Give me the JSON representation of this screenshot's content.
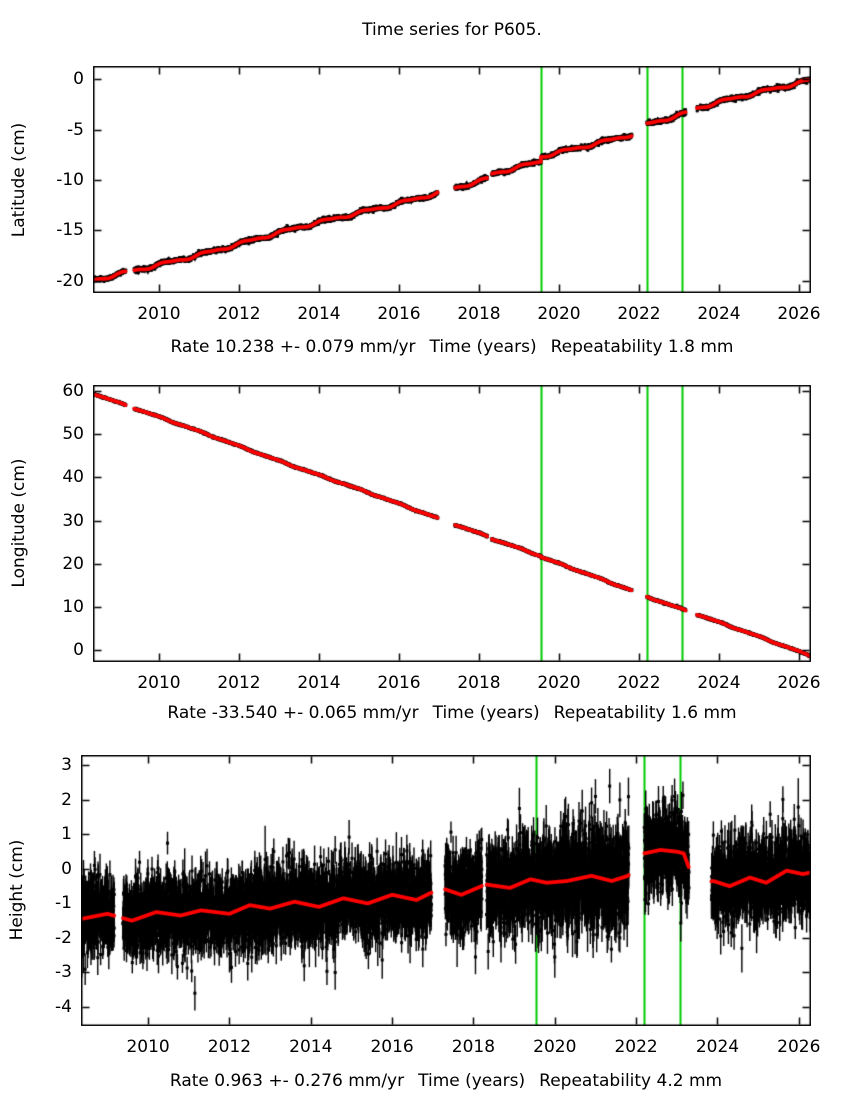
{
  "title": "Time series for P605.",
  "colors": {
    "background": "#ffffff",
    "data_points": "#000000",
    "model_line": "#ff0000",
    "event_line": "#00cc00",
    "frame": "#000000"
  },
  "chart_data": [
    {
      "type": "scatter",
      "panel": "latitude",
      "ylabel": "Latitude (cm)",
      "footer": {
        "rate": "Rate 10.238 +- 0.079 mm/yr",
        "xlabel": "Time (years)",
        "repeatability": "Repeatability 1.8 mm"
      },
      "rate_value_mm_yr": 10.238,
      "rate_sigma_mm_yr": 0.079,
      "repeatability_mm": 1.8,
      "xlim": [
        2008.35,
        2026.3
      ],
      "ylim": [
        -21.2,
        1.3
      ],
      "xticks": [
        2010,
        2012,
        2014,
        2016,
        2018,
        2020,
        2022,
        2024,
        2026
      ],
      "yticks": [
        0,
        -5,
        -10,
        -15,
        -20
      ],
      "event_lines": [
        2019.55,
        2022.2,
        2023.07
      ],
      "gaps": [
        [
          2009.17,
          2009.38
        ],
        [
          2016.97,
          2017.4
        ],
        [
          2018.21,
          2018.32
        ],
        [
          2021.82,
          2022.2
        ],
        [
          2023.17,
          2023.45
        ]
      ],
      "trend": {
        "start_value": -20.05,
        "rate_cm_yr": 1.0238,
        "steps": [
          [
            2018.32,
            0.35
          ],
          [
            2019.55,
            0.5
          ],
          [
            2022.2,
            0.6
          ],
          [
            2023.45,
            0.2
          ]
        ]
      },
      "signal": {
        "annual": [
          0.13,
          0.4
        ],
        "semi": [
          0.05,
          1.2
        ],
        "slow": [
          0.09,
          5.3,
          2.1
        ]
      },
      "noise_sd": 0.095,
      "bar_frac": [
        1.0,
        0.8
      ],
      "outliers": [
        [
          2010.05,
          -18.35,
          0.2
        ],
        [
          2013.4,
          -15.05,
          0.2
        ]
      ],
      "seed": 1001
    },
    {
      "type": "scatter",
      "panel": "longitude",
      "ylabel": "Longitude (cm)",
      "footer": {
        "rate": "Rate -33.540 +- 0.065 mm/yr",
        "xlabel": "Time (years)",
        "repeatability": "Repeatability 1.6 mm"
      },
      "rate_value_mm_yr": -33.54,
      "rate_sigma_mm_yr": 0.065,
      "repeatability_mm": 1.6,
      "xlim": [
        2008.35,
        2026.3
      ],
      "ylim": [
        -2.75,
        61.4
      ],
      "xticks": [
        2010,
        2012,
        2014,
        2016,
        2018,
        2020,
        2022,
        2024,
        2026
      ],
      "yticks": [
        60,
        50,
        40,
        30,
        20,
        10,
        0
      ],
      "event_lines": [
        2019.55,
        2022.2,
        2023.07
      ],
      "gaps": [
        [
          2009.17,
          2009.38
        ],
        [
          2016.97,
          2017.4
        ],
        [
          2018.21,
          2018.32
        ],
        [
          2021.82,
          2022.2
        ],
        [
          2023.17,
          2023.45
        ]
      ],
      "trend": {
        "start_value": 59.5,
        "rate_cm_yr": -3.354,
        "steps": [
          [
            2018.32,
            -0.2
          ],
          [
            2019.55,
            -0.25
          ],
          [
            2022.2,
            -0.15
          ]
        ]
      },
      "signal": {
        "annual": [
          0.1,
          2.0
        ],
        "semi": [
          0.04,
          0.5
        ],
        "slow": [
          0.07,
          4.6,
          0.8
        ]
      },
      "noise_sd": 0.085,
      "bar_frac": [
        1.0,
        0.8
      ],
      "outliers": [
        [
          2022.95,
          10.4,
          0.2
        ]
      ],
      "seed": 2002
    },
    {
      "type": "scatter",
      "panel": "height",
      "ylabel": "Height (cm)",
      "footer": {
        "rate": "Rate 0.963 +- 0.276 mm/yr",
        "xlabel": "Time (years)",
        "repeatability": "Repeatability 4.2 mm"
      },
      "rate_value_mm_yr": 0.963,
      "rate_sigma_mm_yr": 0.276,
      "repeatability_mm": 4.2,
      "xlim": [
        2008.35,
        2026.3
      ],
      "ylim": [
        -4.55,
        3.3
      ],
      "xticks": [
        2010,
        2012,
        2014,
        2016,
        2018,
        2020,
        2022,
        2024,
        2026
      ],
      "yticks": [
        3,
        2,
        1,
        0,
        -1,
        -2,
        -3,
        -4
      ],
      "event_lines": [
        2019.55,
        2022.2,
        2023.07
      ],
      "gaps": [
        [
          2009.17,
          2009.38
        ],
        [
          2016.97,
          2017.3
        ],
        [
          2018.21,
          2018.32
        ],
        [
          2021.82,
          2022.2
        ],
        [
          2023.3,
          2023.85
        ]
      ],
      "model_points": [
        [
          2008.35,
          -1.45
        ],
        [
          2009.0,
          -1.3
        ],
        [
          2009.6,
          -1.5
        ],
        [
          2010.2,
          -1.25
        ],
        [
          2010.8,
          -1.35
        ],
        [
          2011.3,
          -1.2
        ],
        [
          2012.0,
          -1.3
        ],
        [
          2012.5,
          -1.05
        ],
        [
          2013.0,
          -1.15
        ],
        [
          2013.6,
          -0.95
        ],
        [
          2014.2,
          -1.1
        ],
        [
          2014.8,
          -0.85
        ],
        [
          2015.4,
          -1.0
        ],
        [
          2016.0,
          -0.75
        ],
        [
          2016.6,
          -0.9
        ],
        [
          2017.2,
          -0.55
        ],
        [
          2017.7,
          -0.75
        ],
        [
          2018.3,
          -0.45
        ],
        [
          2018.9,
          -0.55
        ],
        [
          2019.4,
          -0.3
        ],
        [
          2019.8,
          -0.4
        ],
        [
          2020.3,
          -0.35
        ],
        [
          2020.9,
          -0.2
        ],
        [
          2021.4,
          -0.35
        ],
        [
          2021.8,
          -0.2
        ],
        [
          2022.2,
          0.45
        ],
        [
          2022.6,
          0.55
        ],
        [
          2023.0,
          0.5
        ],
        [
          2023.17,
          0.45
        ],
        [
          2023.45,
          -0.45
        ],
        [
          2023.9,
          -0.35
        ],
        [
          2024.3,
          -0.5
        ],
        [
          2024.8,
          -0.25
        ],
        [
          2025.2,
          -0.4
        ],
        [
          2025.7,
          -0.05
        ],
        [
          2026.1,
          -0.15
        ],
        [
          2026.3,
          -0.1
        ]
      ],
      "noise_sd": [
        [
          2008.35,
          0.5
        ],
        [
          2012.0,
          0.52
        ],
        [
          2017.3,
          0.55
        ],
        [
          2019.55,
          0.6
        ],
        [
          2020.1,
          0.66
        ],
        [
          2022.2,
          0.55
        ],
        [
          2023.85,
          0.56
        ]
      ],
      "bar_frac": [
        0.55,
        0.5
      ],
      "outliers": [
        [
          2011.15,
          -3.6,
          0.5
        ],
        [
          2012.05,
          -2.85,
          0.45
        ],
        [
          2014.6,
          -3.0,
          0.5
        ],
        [
          2018.05,
          -2.55,
          0.5
        ],
        [
          2019.13,
          1.75,
          0.6
        ],
        [
          2020.0,
          -2.55,
          0.6
        ],
        [
          2021.0,
          2.1,
          0.5
        ],
        [
          2021.35,
          2.4,
          0.5
        ],
        [
          2021.6,
          2.0,
          0.5
        ],
        [
          2022.55,
          1.95,
          0.45
        ],
        [
          2024.6,
          -2.3,
          0.7
        ]
      ],
      "seed": 3003
    }
  ]
}
